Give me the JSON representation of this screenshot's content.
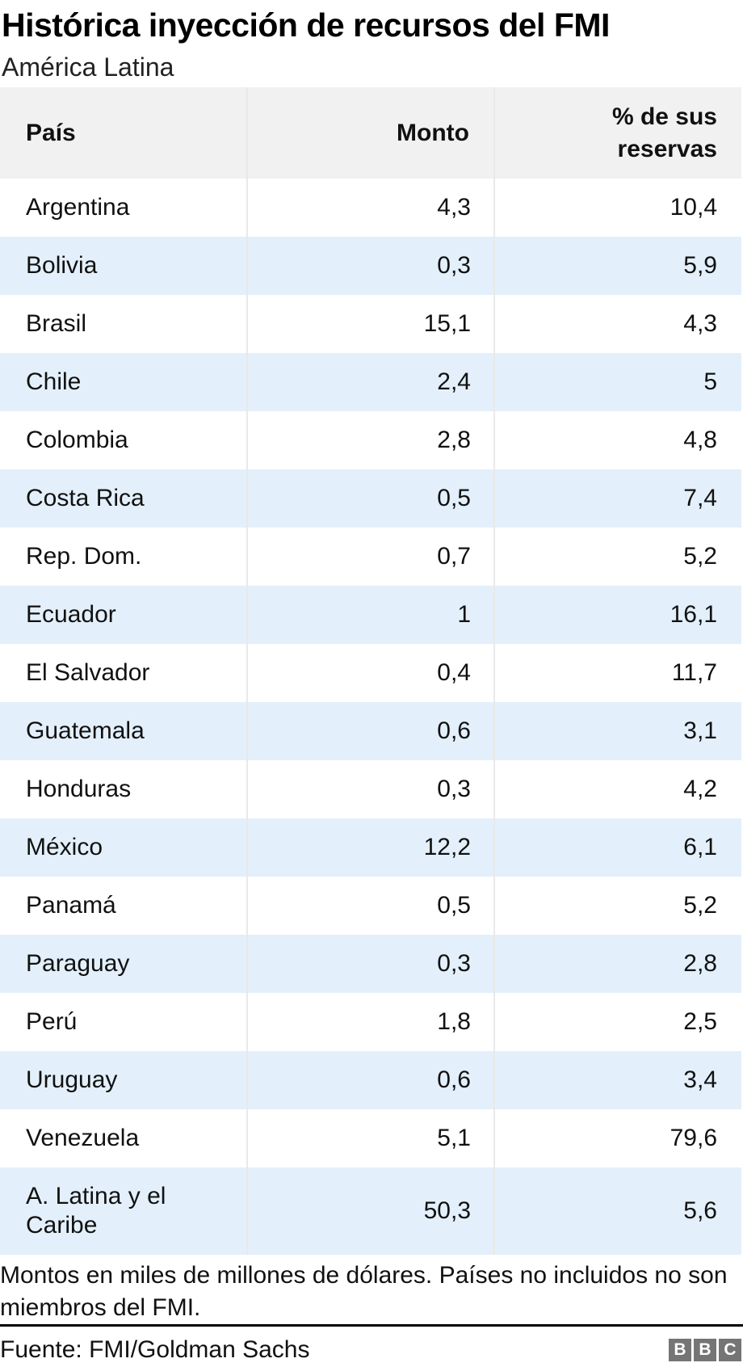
{
  "header": {
    "title": "Histórica inyección de recursos del FMI",
    "subtitle": "América Latina"
  },
  "table": {
    "columns": [
      {
        "label": "País",
        "align": "left"
      },
      {
        "label": "Monto",
        "align": "right"
      },
      {
        "label": "% de sus reservas",
        "align": "right"
      }
    ],
    "rows": [
      {
        "country": "Argentina",
        "monto": "4,3",
        "reservas": "10,4"
      },
      {
        "country": "Bolivia",
        "monto": "0,3",
        "reservas": "5,9"
      },
      {
        "country": "Brasil",
        "monto": "15,1",
        "reservas": "4,3"
      },
      {
        "country": "Chile",
        "monto": "2,4",
        "reservas": "5"
      },
      {
        "country": "Colombia",
        "monto": "2,8",
        "reservas": "4,8"
      },
      {
        "country": "Costa Rica",
        "monto": "0,5",
        "reservas": "7,4"
      },
      {
        "country": "Rep. Dom.",
        "monto": "0,7",
        "reservas": "5,2"
      },
      {
        "country": "Ecuador",
        "monto": "1",
        "reservas": "16,1"
      },
      {
        "country": "El Salvador",
        "monto": "0,4",
        "reservas": "11,7"
      },
      {
        "country": "Guatemala",
        "monto": "0,6",
        "reservas": "3,1"
      },
      {
        "country": "Honduras",
        "monto": "0,3",
        "reservas": "4,2"
      },
      {
        "country": "México",
        "monto": "12,2",
        "reservas": "6,1"
      },
      {
        "country": "Panamá",
        "monto": "0,5",
        "reservas": "5,2"
      },
      {
        "country": "Paraguay",
        "monto": "0,3",
        "reservas": "2,8"
      },
      {
        "country": "Perú",
        "monto": "1,8",
        "reservas": "2,5"
      },
      {
        "country": "Uruguay",
        "monto": "0,6",
        "reservas": "3,4"
      },
      {
        "country": "Venezuela",
        "monto": "5,1",
        "reservas": "79,6"
      },
      {
        "country": "A. Latina y el Caribe",
        "monto": "50,3",
        "reservas": "5,6"
      }
    ]
  },
  "footnote": "Montos en miles de millones de dólares. Países no incluidos no son miembros del FMI.",
  "source": {
    "label": "Fuente: FMI/Goldman Sachs",
    "logo_letters": [
      "B",
      "B",
      "C"
    ]
  },
  "colors": {
    "row_stripe_blue": "#e3f0fb",
    "header_grey": "#f1f1f1",
    "divider_grey": "#e9e9e9",
    "rule_black": "#000000",
    "bbc_logo_grey": "#757575",
    "text_black": "#111111"
  },
  "chart_data": {
    "type": "table",
    "title": "Histórica inyección de recursos del FMI",
    "subtitle": "América Latina",
    "columns": [
      "País",
      "Monto",
      "% de sus reservas"
    ],
    "rows": [
      [
        "Argentina",
        "4,3",
        "10,4"
      ],
      [
        "Bolivia",
        "0,3",
        "5,9"
      ],
      [
        "Brasil",
        "15,1",
        "4,3"
      ],
      [
        "Chile",
        "2,4",
        "5"
      ],
      [
        "Colombia",
        "2,8",
        "4,8"
      ],
      [
        "Costa Rica",
        "0,5",
        "7,4"
      ],
      [
        "Rep. Dom.",
        "0,7",
        "5,2"
      ],
      [
        "Ecuador",
        "1",
        "16,1"
      ],
      [
        "El Salvador",
        "0,4",
        "11,7"
      ],
      [
        "Guatemala",
        "0,6",
        "3,1"
      ],
      [
        "Honduras",
        "0,3",
        "4,2"
      ],
      [
        "México",
        "12,2",
        "6,1"
      ],
      [
        "Panamá",
        "0,5",
        "5,2"
      ],
      [
        "Paraguay",
        "0,3",
        "2,8"
      ],
      [
        "Perú",
        "1,8",
        "2,5"
      ],
      [
        "Uruguay",
        "0,6",
        "3,4"
      ],
      [
        "Venezuela",
        "5,1",
        "79,6"
      ],
      [
        "A. Latina y el Caribe",
        "50,3",
        "5,6"
      ]
    ],
    "monto_numeric": [
      4.3,
      0.3,
      15.1,
      2.4,
      2.8,
      0.5,
      0.7,
      1,
      0.4,
      0.6,
      0.3,
      12.2,
      0.5,
      0.3,
      1.8,
      0.6,
      5.1,
      50.3
    ],
    "reservas_pct_numeric": [
      10.4,
      5.9,
      4.3,
      5,
      4.8,
      7.4,
      5.2,
      16.1,
      11.7,
      3.1,
      4.2,
      6.1,
      5.2,
      2.8,
      2.5,
      3.4,
      79.6,
      5.6
    ],
    "footnote": "Montos en miles de millones de dólares. Países no incluidos no son miembros del FMI.",
    "source": "Fuente: FMI/Goldman Sachs",
    "layout_hints": {
      "striped_rows": true,
      "stripe_color": "#e3f0fb",
      "header_bg": "#f1f1f1",
      "numeric_align": "right"
    }
  }
}
